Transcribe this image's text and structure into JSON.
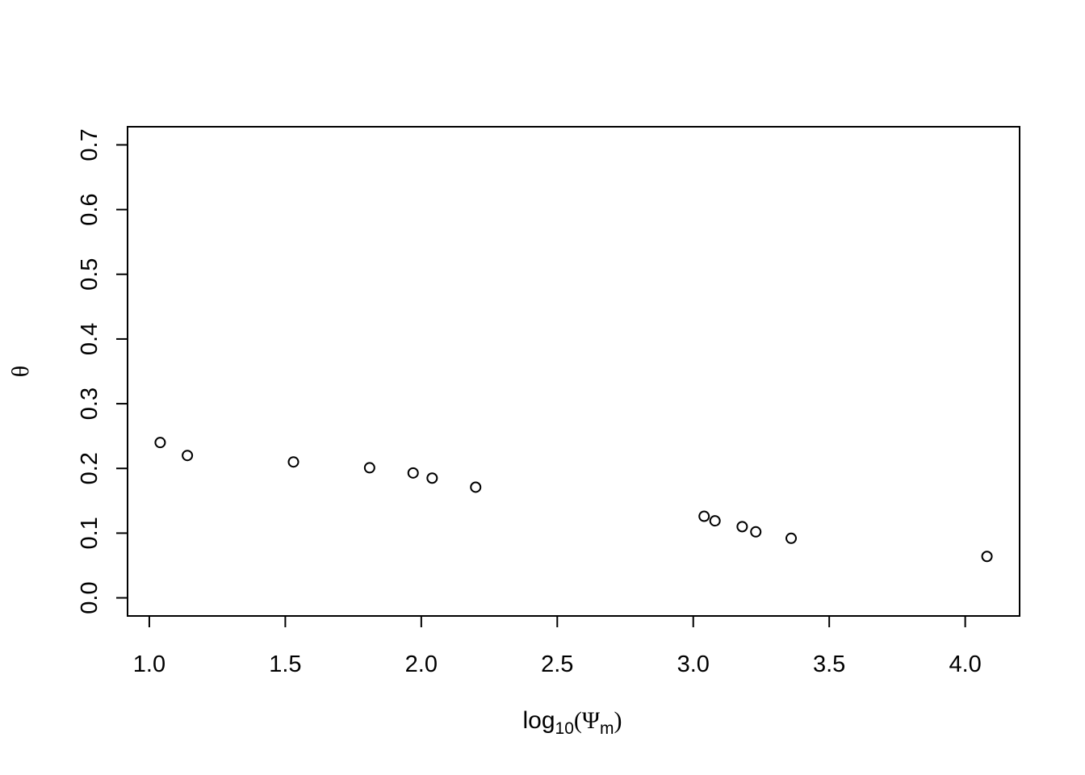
{
  "chart_data": {
    "type": "scatter",
    "title": "",
    "xlabel": {
      "base": "log",
      "subscript": "10",
      "open_paren": "(",
      "symbol": "Ψ",
      "symbol_subscript": "m",
      "close_paren": ")"
    },
    "ylabel": "θ",
    "xlim": [
      0.92,
      4.2
    ],
    "ylim": [
      -0.028,
      0.728
    ],
    "x_ticks": [
      1.0,
      1.5,
      2.0,
      2.5,
      3.0,
      3.5,
      4.0
    ],
    "x_tick_labels": [
      "1.0",
      "1.5",
      "2.0",
      "2.5",
      "3.0",
      "3.5",
      "4.0"
    ],
    "y_ticks": [
      0.0,
      0.1,
      0.2,
      0.3,
      0.4,
      0.5,
      0.6,
      0.7
    ],
    "y_tick_labels": [
      "0.0",
      "0.1",
      "0.2",
      "0.3",
      "0.4",
      "0.5",
      "0.6",
      "0.7"
    ],
    "grid": false,
    "legend": "none",
    "marker": "open-circle",
    "colors": {
      "points": "#000000",
      "axes": "#000000",
      "background": "#ffffff"
    },
    "points": [
      {
        "x": 1.04,
        "y": 0.24
      },
      {
        "x": 1.14,
        "y": 0.22
      },
      {
        "x": 1.53,
        "y": 0.21
      },
      {
        "x": 1.81,
        "y": 0.201
      },
      {
        "x": 1.97,
        "y": 0.193
      },
      {
        "x": 2.04,
        "y": 0.185
      },
      {
        "x": 2.2,
        "y": 0.171
      },
      {
        "x": 3.04,
        "y": 0.126
      },
      {
        "x": 3.08,
        "y": 0.119
      },
      {
        "x": 3.18,
        "y": 0.11
      },
      {
        "x": 3.23,
        "y": 0.102
      },
      {
        "x": 3.36,
        "y": 0.092
      },
      {
        "x": 4.08,
        "y": 0.064
      }
    ]
  }
}
